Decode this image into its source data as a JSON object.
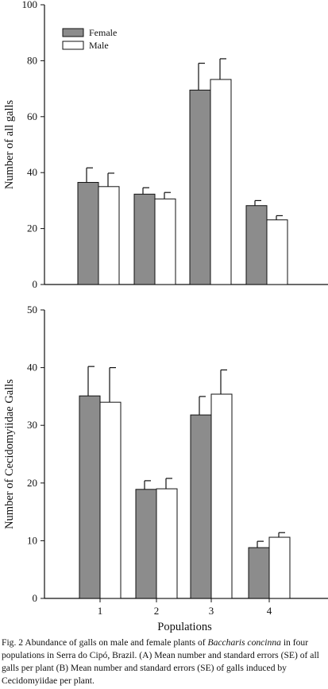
{
  "chart_data": [
    {
      "type": "bar",
      "panel": "A",
      "categories": [
        "1",
        "2",
        "3",
        "4"
      ],
      "series": [
        {
          "name": "Female",
          "values": [
            36.5,
            32.3,
            69.5,
            28.2
          ],
          "errors": [
            5.2,
            2.3,
            9.6,
            1.8
          ],
          "color": "#8c8c8c"
        },
        {
          "name": "Male",
          "values": [
            35.0,
            30.6,
            73.3,
            23.1
          ],
          "errors": [
            4.8,
            2.3,
            7.4,
            1.5
          ],
          "color": "#ffffff"
        }
      ],
      "xlabel": "",
      "ylabel": "Number of all galls",
      "ylim": [
        0,
        100
      ],
      "yticks": [
        0,
        20,
        40,
        60,
        80,
        100
      ],
      "legend": "top-left",
      "grid": false
    },
    {
      "type": "bar",
      "panel": "B",
      "categories": [
        "1",
        "2",
        "3",
        "4"
      ],
      "series": [
        {
          "name": "Female",
          "values": [
            35.1,
            18.9,
            31.8,
            8.8
          ],
          "errors": [
            5.1,
            1.5,
            3.2,
            1.1
          ],
          "color": "#8c8c8c"
        },
        {
          "name": "Male",
          "values": [
            34.0,
            19.0,
            35.4,
            10.6
          ],
          "errors": [
            6.0,
            1.8,
            4.2,
            0.8
          ],
          "color": "#ffffff"
        }
      ],
      "xlabel": "Populations",
      "ylabel": "Number of Cecidomyiidae Galls",
      "ylim": [
        0,
        50
      ],
      "yticks": [
        0,
        10,
        20,
        30,
        40,
        50
      ],
      "grid": false
    }
  ],
  "caption": {
    "prefix": "Fig. 2 Abundance of galls on male and female plants of ",
    "species": "Baccharis concinna",
    "suffix": " in four populations in Serra do Cipó, Brazil. (A) Mean number and standard errors (SE) of all galls per plant (B) Mean number and standard errors (SE) of galls induced by Cecidomyiidae per plant."
  }
}
